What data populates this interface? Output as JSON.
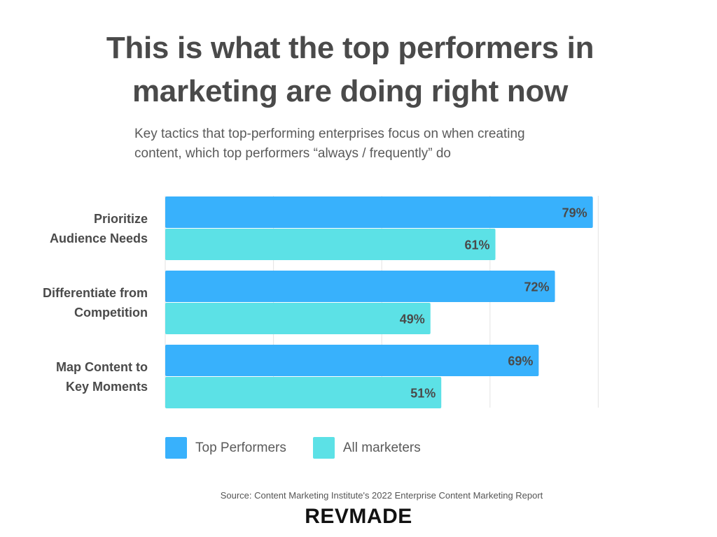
{
  "title_line1": "This is what the top performers in",
  "title_line2": "marketing are doing right now",
  "subtitle_line1": "Key tactics that top-performing enterprises focus on when creating",
  "subtitle_line2": "content, which top performers “always / frequently” do",
  "chart_data": {
    "type": "bar",
    "orientation": "horizontal",
    "categories": [
      [
        "Prioritize",
        "Audience Needs"
      ],
      [
        "Differentiate from",
        "Competition"
      ],
      [
        "Map Content to",
        "Key Moments"
      ]
    ],
    "series": [
      {
        "name": "Top Performers",
        "values": [
          79,
          72,
          69
        ],
        "color": "#38b1fc"
      },
      {
        "name": "All marketers",
        "values": [
          61,
          49,
          51
        ],
        "color": "#5ce1e6"
      }
    ],
    "value_suffix": "%",
    "xlim": [
      0,
      80
    ],
    "grid": true,
    "legend_position": "bottom-left"
  },
  "legend": {
    "top_performers": "Top Performers",
    "all_marketers": "All marketers"
  },
  "source": "Source: Content Marketing Institute's 2022 Enterprise Content Marketing Report",
  "brand": "REVMADE"
}
